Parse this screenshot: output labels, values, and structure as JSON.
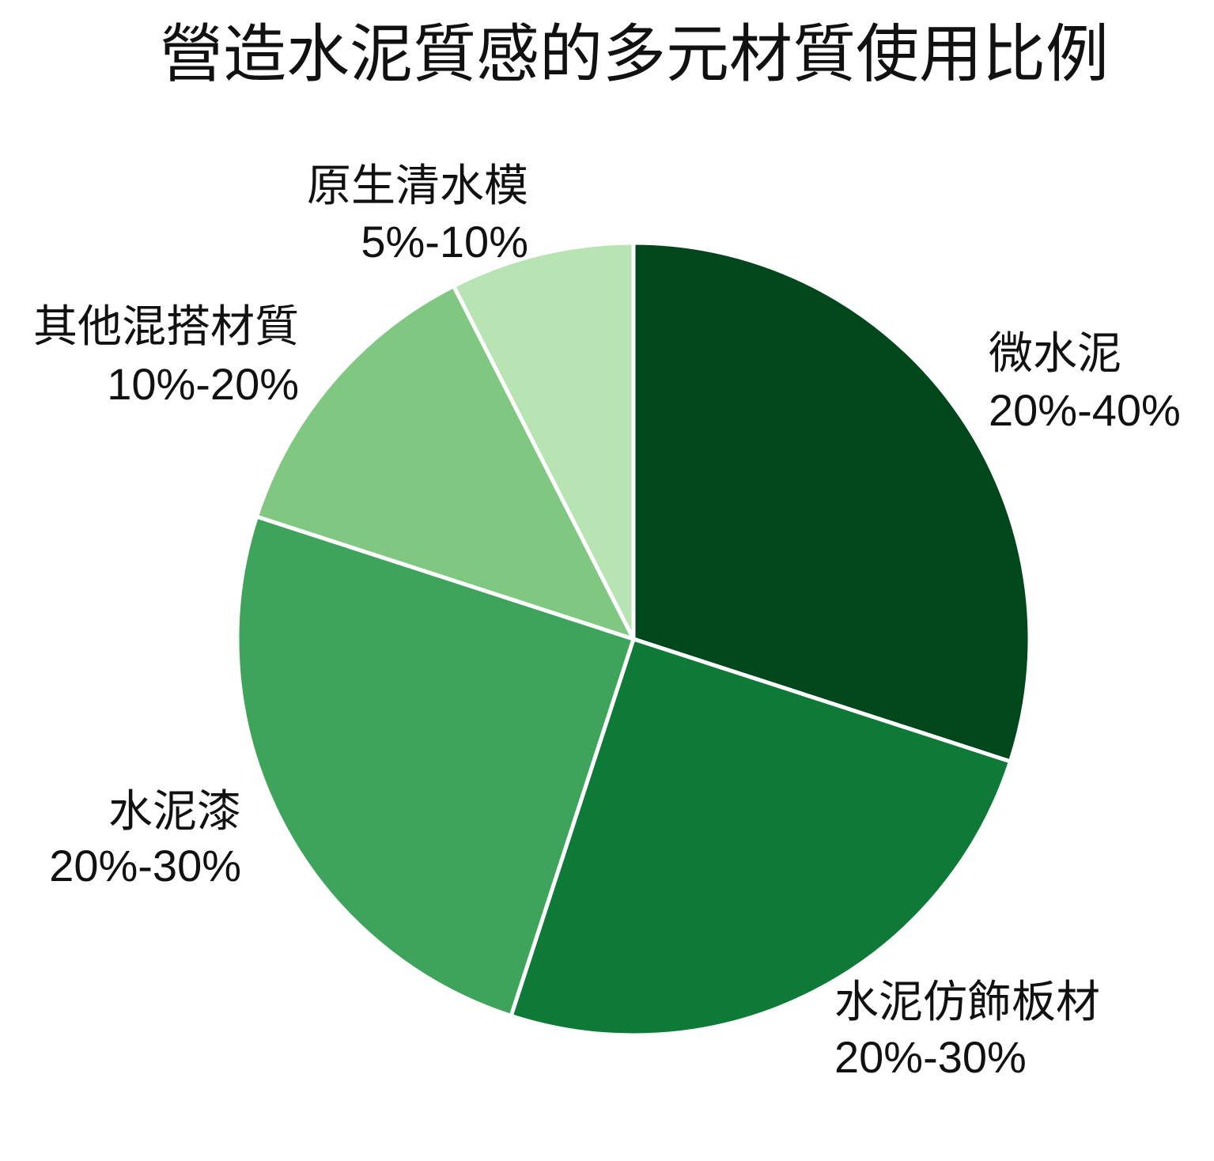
{
  "chart_data": {
    "type": "pie",
    "title": "營造水泥質感的多元材質使用比例",
    "categories": [
      "微水泥",
      "水泥仿飾板材",
      "水泥漆",
      "其他混搭材質",
      "原生清水模"
    ],
    "data_labels": [
      "20%-40%",
      "20%-30%",
      "20%-30%",
      "10%-20%",
      "5%-10%"
    ],
    "values": [
      30,
      25,
      25,
      12.5,
      7.5
    ],
    "colors": [
      "#00471c",
      "#0f7a37",
      "#3ea45b",
      "#80c782",
      "#b8e3b3"
    ]
  }
}
